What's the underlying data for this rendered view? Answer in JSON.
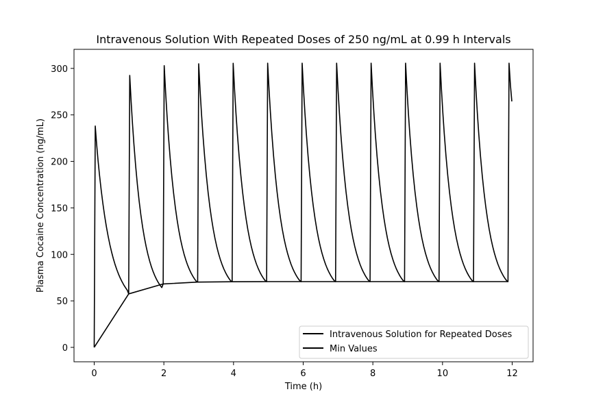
{
  "chart_data": {
    "type": "line",
    "title": "Intravenous Solution With Repeated Doses of 250 ng/mL at 0.99 h Intervals",
    "xlabel": "Time (h)",
    "ylabel": "Plasma Cocaine Concentration (ng/mL)",
    "xlim": [
      -0.58,
      12.6
    ],
    "ylim": [
      -15.5,
      320.5
    ],
    "x_ticks": [
      0,
      2,
      4,
      6,
      8,
      10,
      12
    ],
    "x_tick_labels": [
      "0",
      "2",
      "4",
      "6",
      "8",
      "10",
      "12"
    ],
    "y_ticks": [
      0,
      50,
      100,
      150,
      200,
      250,
      300
    ],
    "y_tick_labels": [
      "0",
      "50",
      "100",
      "150",
      "200",
      "250",
      "300"
    ],
    "grid": false,
    "legend_position": "lower-right",
    "series": [
      {
        "name": "Intravenous Solution for Repeated Doses",
        "color": "#000000",
        "x": [
          0,
          0.03,
          0.07,
          0.11,
          0.15,
          0.2,
          0.25,
          0.3,
          0.35,
          0.4,
          0.45,
          0.5,
          0.55,
          0.6,
          0.65,
          0.7,
          0.75,
          0.8,
          0.85,
          0.9,
          0.95,
          0.99,
          1.02,
          1.06,
          1.1,
          1.14,
          1.19,
          1.24,
          1.29,
          1.34,
          1.39,
          1.44,
          1.49,
          1.54,
          1.59,
          1.64,
          1.69,
          1.74,
          1.79,
          1.84,
          1.89,
          1.94,
          1.98,
          2.01,
          2.05,
          2.09,
          2.13,
          2.18,
          2.23,
          2.28,
          2.33,
          2.38,
          2.43,
          2.48,
          2.53,
          2.58,
          2.63,
          2.68,
          2.73,
          2.78,
          2.83,
          2.88,
          2.93,
          2.97,
          3.0,
          3.04,
          3.08,
          3.12,
          3.17,
          3.22,
          3.27,
          3.32,
          3.37,
          3.42,
          3.47,
          3.52,
          3.57,
          3.62,
          3.67,
          3.72,
          3.77,
          3.82,
          3.87,
          3.92,
          3.96,
          3.99,
          4.03,
          4.07,
          4.11,
          4.16,
          4.21,
          4.26,
          4.31,
          4.36,
          4.41,
          4.46,
          4.51,
          4.56,
          4.61,
          4.66,
          4.71,
          4.76,
          4.81,
          4.86,
          4.91,
          4.95,
          4.98,
          5.02,
          5.06,
          5.1,
          5.15,
          5.2,
          5.25,
          5.3,
          5.35,
          5.4,
          5.45,
          5.5,
          5.55,
          5.6,
          5.65,
          5.7,
          5.75,
          5.8,
          5.85,
          5.9,
          5.94,
          5.97,
          6.01,
          6.05,
          6.09,
          6.14,
          6.19,
          6.24,
          6.29,
          6.34,
          6.39,
          6.44,
          6.49,
          6.54,
          6.59,
          6.64,
          6.69,
          6.74,
          6.79,
          6.84,
          6.89,
          6.93,
          6.96,
          7.0,
          7.04,
          7.08,
          7.13,
          7.18,
          7.23,
          7.28,
          7.33,
          7.38,
          7.43,
          7.48,
          7.53,
          7.58,
          7.63,
          7.68,
          7.73,
          7.78,
          7.83,
          7.88,
          7.92,
          7.95,
          7.99,
          8.03,
          8.07,
          8.12,
          8.17,
          8.22,
          8.27,
          8.32,
          8.37,
          8.42,
          8.47,
          8.52,
          8.57,
          8.62,
          8.67,
          8.72,
          8.77,
          8.82,
          8.87,
          8.91,
          8.94,
          8.98,
          9.02,
          9.06,
          9.11,
          9.16,
          9.21,
          9.26,
          9.31,
          9.36,
          9.41,
          9.46,
          9.51,
          9.56,
          9.61,
          9.66,
          9.71,
          9.76,
          9.81,
          9.86,
          9.9,
          9.93,
          9.97,
          10.01,
          10.05,
          10.1,
          10.15,
          10.2,
          10.25,
          10.3,
          10.35,
          10.4,
          10.45,
          10.5,
          10.55,
          10.6,
          10.65,
          10.7,
          10.75,
          10.8,
          10.85,
          10.89,
          10.92,
          10.96,
          11.0,
          11.04,
          11.09,
          11.14,
          11.19,
          11.24,
          11.29,
          11.34,
          11.39,
          11.44,
          11.49,
          11.54,
          11.59,
          11.64,
          11.69,
          11.74,
          11.79,
          11.84,
          11.88,
          11.91,
          11.95,
          11.99
        ],
        "y": [
          0,
          238,
          218.4,
          201.2,
          186.1,
          169.3,
          154.5,
          141.3,
          129.7,
          119.5,
          110.4,
          102.4,
          95.3,
          89,
          83.5,
          78.6,
          74.3,
          70.5,
          67.1,
          64.1,
          61.4,
          57.5,
          292.5,
          264.6,
          240.1,
          218.6,
          195.1,
          174.9,
          157.4,
          142.4,
          129.4,
          118.2,
          108.6,
          100.3,
          93.1,
          86.9,
          81.6,
          77.0,
          73.1,
          69.7,
          66.8,
          64.3,
          68.2,
          303,
          274.6,
          249.7,
          227.8,
          203.9,
          183.3,
          165.6,
          150.3,
          137.1,
          125.7,
          115.9,
          107.5,
          100.2,
          94.0,
          88.6,
          84.0,
          80.0,
          76.6,
          73.6,
          71.1,
          70.2,
          305,
          276.4,
          251.4,
          229.3,
          205.3,
          184.6,
          166.7,
          151.3,
          138.0,
          126.6,
          116.7,
          108.2,
          100.9,
          94.6,
          89.2,
          84.5,
          80.5,
          77.0,
          74.0,
          71.5,
          70.6,
          305.5,
          276.9,
          251.9,
          229.8,
          205.7,
          185.0,
          167.1,
          151.7,
          138.4,
          126.9,
          117.0,
          108.5,
          101.2,
          94.9,
          89.4,
          84.7,
          80.7,
          77.2,
          74.2,
          71.7,
          70.7,
          305.6,
          277.0,
          252.0,
          229.9,
          205.8,
          185.1,
          167.2,
          151.8,
          138.5,
          127.0,
          117.1,
          108.6,
          101.3,
          95.0,
          89.5,
          84.8,
          80.8,
          77.3,
          74.3,
          71.8,
          70.7,
          305.6,
          277.0,
          252.0,
          229.9,
          205.8,
          185.1,
          167.2,
          151.8,
          138.5,
          127.0,
          117.1,
          108.6,
          101.3,
          95.0,
          89.5,
          84.8,
          80.8,
          77.3,
          74.3,
          71.8,
          70.7,
          305.6,
          277.0,
          252.0,
          229.9,
          205.8,
          185.1,
          167.2,
          151.8,
          138.5,
          127.0,
          117.1,
          108.6,
          101.3,
          95.0,
          89.5,
          84.8,
          80.8,
          77.3,
          74.3,
          71.8,
          70.7,
          305.6,
          277.0,
          252.0,
          229.9,
          205.8,
          185.1,
          167.2,
          151.8,
          138.5,
          127.0,
          117.1,
          108.6,
          101.3,
          95.0,
          89.5,
          84.8,
          80.8,
          77.3,
          74.3,
          71.8,
          70.7,
          305.6,
          277.0,
          252.0,
          229.9,
          205.8,
          185.1,
          167.2,
          151.8,
          138.5,
          127.0,
          117.1,
          108.6,
          101.3,
          95.0,
          89.5,
          84.8,
          80.8,
          77.3,
          74.3,
          71.8,
          70.7,
          305.6,
          277.0,
          252.0,
          229.9,
          205.8,
          185.1,
          167.2,
          151.8,
          138.5,
          127.0,
          117.1,
          108.6,
          101.3,
          95.0,
          89.5,
          84.8,
          80.8,
          77.3,
          74.3,
          71.8,
          70.7,
          305.6,
          277.0,
          252.0,
          229.9,
          205.8,
          185.1,
          167.2,
          151.8,
          138.5,
          127.0,
          117.1,
          108.6,
          101.3,
          95.0,
          89.5,
          84.8,
          80.8,
          77.3,
          74.3,
          71.8,
          70.7,
          305.6,
          282.0,
          264.5
        ]
      },
      {
        "name": "Min Values",
        "color": "#000000",
        "x": [
          0,
          0.99,
          1.98,
          2.97,
          3.96,
          4.95,
          5.94,
          6.93,
          7.92,
          8.91,
          9.9,
          10.89,
          11.88
        ],
        "y": [
          0,
          57.5,
          68.2,
          70.2,
          70.6,
          70.7,
          70.7,
          70.7,
          70.7,
          70.7,
          70.7,
          70.7,
          70.7
        ]
      }
    ]
  }
}
